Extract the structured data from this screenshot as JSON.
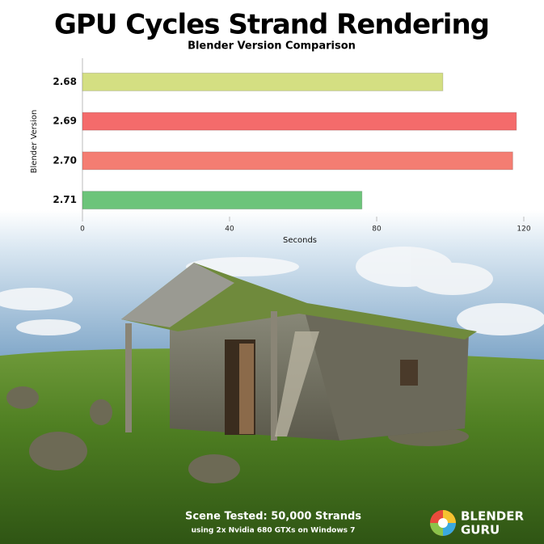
{
  "chart_data": {
    "type": "bar",
    "orientation": "horizontal",
    "title": "GPU Cycles Strand Rendering",
    "subtitle": "Blender Version Comparison",
    "x_label": "Seconds",
    "y_label": "Blender Version",
    "categories": [
      "2.68",
      "2.69",
      "2.70",
      "2.71"
    ],
    "values": [
      98,
      118,
      117,
      76
    ],
    "colors": [
      "#d4df82",
      "#f46b6b",
      "#f47d72",
      "#6cc47a"
    ],
    "xlim": [
      0,
      120
    ],
    "xticks": [
      0,
      40,
      80,
      120
    ]
  },
  "footer": {
    "scene": "Scene Tested: 50,000 Strands",
    "hardware": "using 2x Nvidia 680 GTXs on Windows 7"
  },
  "logo": [
    "BLENDER",
    "GURU"
  ]
}
